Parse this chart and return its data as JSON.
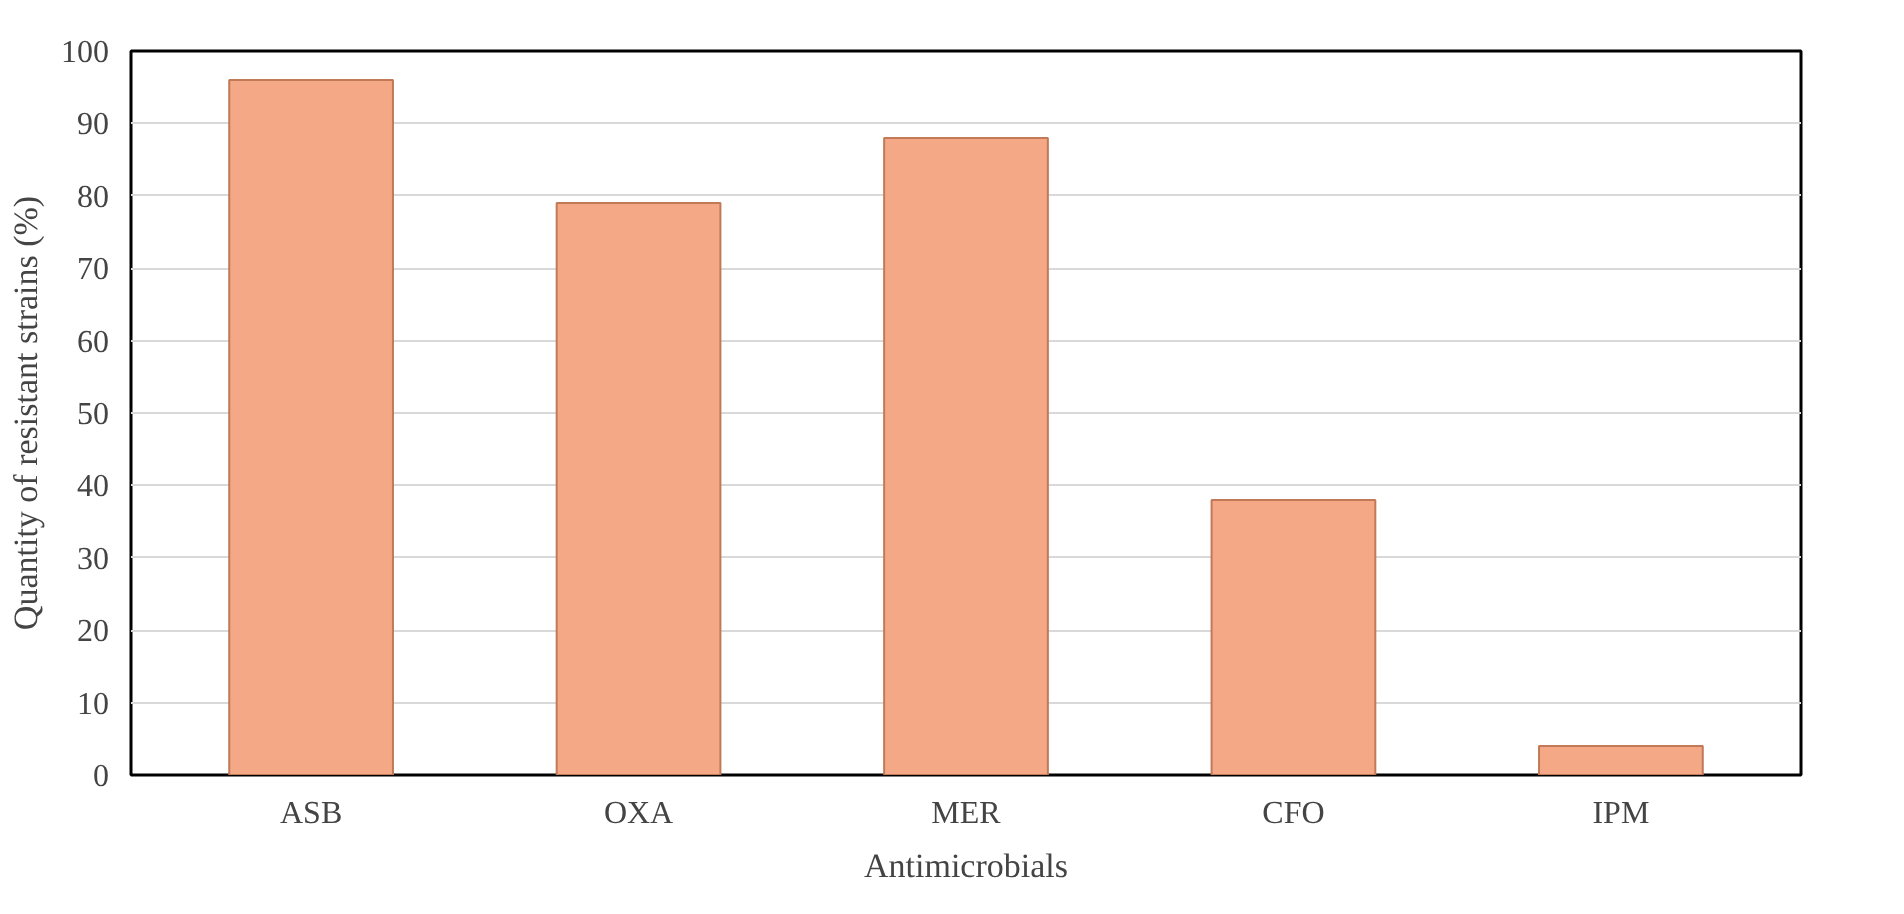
{
  "chart_data": {
    "type": "bar",
    "xlabel": "Antimicrobials",
    "ylabel": "Quantity of resistant strains (%)",
    "categories": [
      "ASB",
      "OXA",
      "MER",
      "CFO",
      "IPM"
    ],
    "values": [
      96,
      79,
      88,
      38,
      4
    ],
    "color": "#f5a885",
    "ylim": [
      0,
      100
    ],
    "yticks": [
      0,
      10,
      20,
      30,
      40,
      50,
      60,
      70,
      80,
      90,
      100
    ],
    "grid": "y"
  }
}
